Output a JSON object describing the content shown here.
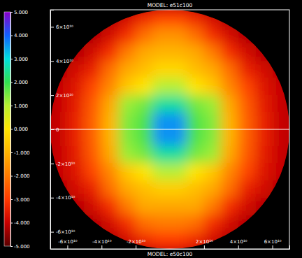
{
  "chart_data": {
    "type": "heatmap",
    "title": "MODEL: e51c100",
    "subtitle": "MODEL: e50c100",
    "xlim": [
      -70000000000,
      70000000000
    ],
    "ylim": [
      -70000000000,
      70000000000
    ],
    "xticks": [
      {
        "value": -60000000000,
        "label": "-6×10¹⁰"
      },
      {
        "value": -40000000000,
        "label": "-4×10¹⁰"
      },
      {
        "value": -20000000000,
        "label": "-2×10¹⁰"
      },
      {
        "value": 20000000000,
        "label": "2×10¹⁰"
      },
      {
        "value": 40000000000,
        "label": "4×10¹⁰"
      },
      {
        "value": 60000000000,
        "label": "6×10¹⁰"
      }
    ],
    "yticks": [
      {
        "value": -60000000000,
        "label": "-6×10¹⁰"
      },
      {
        "value": -40000000000,
        "label": "-4×10¹⁰"
      },
      {
        "value": -20000000000,
        "label": "-2×10¹⁰"
      },
      0,
      {
        "value": 20000000000,
        "label": "2×10¹⁰"
      },
      {
        "value": 40000000000,
        "label": "4×10¹⁰"
      },
      {
        "value": 60000000000,
        "label": "6×10¹⁰"
      }
    ],
    "cells": {
      "x": [
        -65000000000,
        -55000000000,
        -45000000000,
        -35000000000,
        -25000000000,
        -15000000000,
        -5000000000,
        5000000000,
        15000000000,
        25000000000,
        35000000000,
        45000000000,
        55000000000,
        65000000000
      ],
      "y": [
        65000000000,
        55000000000,
        45000000000,
        35000000000,
        25000000000,
        15000000000,
        5000000000,
        -5000000000,
        -15000000000,
        -25000000000,
        -35000000000,
        -45000000000,
        -55000000000,
        -65000000000
      ],
      "z": [
        [
          null,
          null,
          null,
          null,
          -3.8,
          -3.3,
          -2.8,
          -2.8,
          -3.3,
          -3.8,
          null,
          null,
          null,
          null
        ],
        [
          null,
          null,
          null,
          -3.8,
          -3.2,
          -2.2,
          -1.6,
          -1.6,
          -2.2,
          -3.2,
          -3.8,
          null,
          null,
          null
        ],
        [
          null,
          null,
          -3.8,
          -3.2,
          -2.0,
          -1.2,
          -1.0,
          -1.0,
          -1.2,
          -2.0,
          -3.2,
          -3.8,
          null,
          null
        ],
        [
          null,
          -3.8,
          -3.4,
          -2.2,
          -1.2,
          -0.8,
          -0.3,
          -0.3,
          -0.8,
          -1.2,
          -2.2,
          -3.4,
          -3.8,
          null
        ],
        [
          -4.0,
          -3.6,
          -2.8,
          -1.8,
          -0.6,
          0.0,
          1.0,
          1.0,
          0.0,
          -0.6,
          -1.8,
          -2.8,
          -3.6,
          -4.0
        ],
        [
          -4.0,
          -3.5,
          -2.5,
          -1.2,
          1.2,
          1.5,
          2.5,
          2.5,
          1.5,
          1.2,
          -1.2,
          -2.5,
          -3.5,
          -4.0
        ],
        [
          -4.0,
          -3.4,
          -2.4,
          -1.0,
          1.4,
          1.8,
          3.6,
          3.6,
          1.8,
          1.4,
          -1.0,
          -2.4,
          -3.4,
          -4.0
        ],
        [
          -4.0,
          -3.4,
          -2.4,
          -1.0,
          1.4,
          1.8,
          3.6,
          3.6,
          1.8,
          1.4,
          -1.0,
          -2.4,
          -3.4,
          -4.0
        ],
        [
          -4.0,
          -3.5,
          -2.5,
          -1.2,
          1.2,
          1.5,
          2.5,
          2.5,
          1.5,
          1.2,
          -1.2,
          -2.5,
          -3.5,
          -4.0
        ],
        [
          -4.0,
          -3.6,
          -2.8,
          -1.8,
          -0.6,
          0.0,
          1.0,
          1.0,
          0.0,
          -0.6,
          -1.8,
          -2.8,
          -3.6,
          -4.0
        ],
        [
          null,
          -3.8,
          -3.4,
          -2.2,
          -1.2,
          -0.8,
          -0.5,
          -0.5,
          -0.8,
          -1.2,
          -2.2,
          -3.4,
          -3.8,
          null
        ],
        [
          null,
          null,
          -3.8,
          -3.2,
          -2.0,
          -1.2,
          -1.2,
          -1.2,
          -1.2,
          -2.0,
          -3.2,
          -3.8,
          null,
          null
        ],
        [
          null,
          null,
          null,
          -3.8,
          -3.2,
          -2.2,
          -2.0,
          -2.0,
          -2.2,
          -3.2,
          -3.8,
          null,
          null,
          null
        ],
        [
          null,
          null,
          null,
          null,
          -3.8,
          -3.3,
          -3.0,
          -3.0,
          -3.3,
          -3.8,
          null,
          null,
          null,
          null
        ]
      ]
    },
    "colorbar": {
      "range": [
        -5,
        5
      ],
      "ticks": [
        {
          "value": 5,
          "label": "5.000"
        },
        {
          "value": 4,
          "label": "4.000"
        },
        {
          "value": 3,
          "label": "3.000"
        },
        {
          "value": 2,
          "label": "2.000"
        },
        {
          "value": 1,
          "label": "1.000"
        },
        {
          "value": 0,
          "label": "0.000"
        },
        {
          "value": -1,
          "label": "-1.000"
        },
        {
          "value": -2,
          "label": "-2.000"
        },
        {
          "value": -3,
          "label": "-3.000"
        },
        {
          "value": -4,
          "label": "-4.000"
        },
        {
          "value": -5,
          "label": "-5.000"
        }
      ]
    }
  }
}
